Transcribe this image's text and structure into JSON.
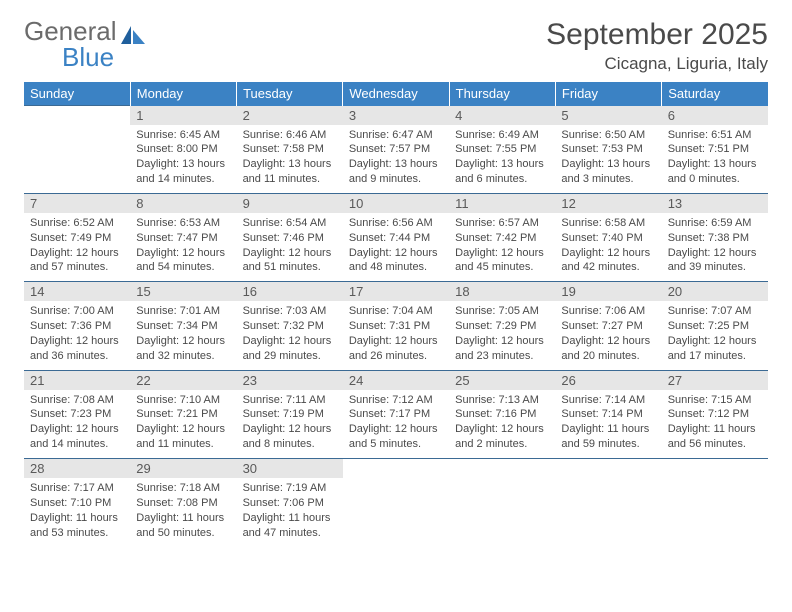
{
  "brand": {
    "part1": "General",
    "part2": "Blue"
  },
  "title": "September 2025",
  "location": "Cicagna, Liguria, Italy",
  "colors": {
    "header_bg": "#3b82c4",
    "header_fg": "#ffffff",
    "daynum_bg": "#e6e6e6",
    "rule": "#3b6a94",
    "text": "#4a4a4a",
    "brand_gray": "#6b6b6b",
    "brand_blue": "#3b82c4"
  },
  "weekdays": [
    "Sunday",
    "Monday",
    "Tuesday",
    "Wednesday",
    "Thursday",
    "Friday",
    "Saturday"
  ],
  "weeks": [
    [
      null,
      {
        "n": "1",
        "sunrise": "6:45 AM",
        "sunset": "8:00 PM",
        "dl": "13 hours and 14 minutes."
      },
      {
        "n": "2",
        "sunrise": "6:46 AM",
        "sunset": "7:58 PM",
        "dl": "13 hours and 11 minutes."
      },
      {
        "n": "3",
        "sunrise": "6:47 AM",
        "sunset": "7:57 PM",
        "dl": "13 hours and 9 minutes."
      },
      {
        "n": "4",
        "sunrise": "6:49 AM",
        "sunset": "7:55 PM",
        "dl": "13 hours and 6 minutes."
      },
      {
        "n": "5",
        "sunrise": "6:50 AM",
        "sunset": "7:53 PM",
        "dl": "13 hours and 3 minutes."
      },
      {
        "n": "6",
        "sunrise": "6:51 AM",
        "sunset": "7:51 PM",
        "dl": "13 hours and 0 minutes."
      }
    ],
    [
      {
        "n": "7",
        "sunrise": "6:52 AM",
        "sunset": "7:49 PM",
        "dl": "12 hours and 57 minutes."
      },
      {
        "n": "8",
        "sunrise": "6:53 AM",
        "sunset": "7:47 PM",
        "dl": "12 hours and 54 minutes."
      },
      {
        "n": "9",
        "sunrise": "6:54 AM",
        "sunset": "7:46 PM",
        "dl": "12 hours and 51 minutes."
      },
      {
        "n": "10",
        "sunrise": "6:56 AM",
        "sunset": "7:44 PM",
        "dl": "12 hours and 48 minutes."
      },
      {
        "n": "11",
        "sunrise": "6:57 AM",
        "sunset": "7:42 PM",
        "dl": "12 hours and 45 minutes."
      },
      {
        "n": "12",
        "sunrise": "6:58 AM",
        "sunset": "7:40 PM",
        "dl": "12 hours and 42 minutes."
      },
      {
        "n": "13",
        "sunrise": "6:59 AM",
        "sunset": "7:38 PM",
        "dl": "12 hours and 39 minutes."
      }
    ],
    [
      {
        "n": "14",
        "sunrise": "7:00 AM",
        "sunset": "7:36 PM",
        "dl": "12 hours and 36 minutes."
      },
      {
        "n": "15",
        "sunrise": "7:01 AM",
        "sunset": "7:34 PM",
        "dl": "12 hours and 32 minutes."
      },
      {
        "n": "16",
        "sunrise": "7:03 AM",
        "sunset": "7:32 PM",
        "dl": "12 hours and 29 minutes."
      },
      {
        "n": "17",
        "sunrise": "7:04 AM",
        "sunset": "7:31 PM",
        "dl": "12 hours and 26 minutes."
      },
      {
        "n": "18",
        "sunrise": "7:05 AM",
        "sunset": "7:29 PM",
        "dl": "12 hours and 23 minutes."
      },
      {
        "n": "19",
        "sunrise": "7:06 AM",
        "sunset": "7:27 PM",
        "dl": "12 hours and 20 minutes."
      },
      {
        "n": "20",
        "sunrise": "7:07 AM",
        "sunset": "7:25 PM",
        "dl": "12 hours and 17 minutes."
      }
    ],
    [
      {
        "n": "21",
        "sunrise": "7:08 AM",
        "sunset": "7:23 PM",
        "dl": "12 hours and 14 minutes."
      },
      {
        "n": "22",
        "sunrise": "7:10 AM",
        "sunset": "7:21 PM",
        "dl": "12 hours and 11 minutes."
      },
      {
        "n": "23",
        "sunrise": "7:11 AM",
        "sunset": "7:19 PM",
        "dl": "12 hours and 8 minutes."
      },
      {
        "n": "24",
        "sunrise": "7:12 AM",
        "sunset": "7:17 PM",
        "dl": "12 hours and 5 minutes."
      },
      {
        "n": "25",
        "sunrise": "7:13 AM",
        "sunset": "7:16 PM",
        "dl": "12 hours and 2 minutes."
      },
      {
        "n": "26",
        "sunrise": "7:14 AM",
        "sunset": "7:14 PM",
        "dl": "11 hours and 59 minutes."
      },
      {
        "n": "27",
        "sunrise": "7:15 AM",
        "sunset": "7:12 PM",
        "dl": "11 hours and 56 minutes."
      }
    ],
    [
      {
        "n": "28",
        "sunrise": "7:17 AM",
        "sunset": "7:10 PM",
        "dl": "11 hours and 53 minutes."
      },
      {
        "n": "29",
        "sunrise": "7:18 AM",
        "sunset": "7:08 PM",
        "dl": "11 hours and 50 minutes."
      },
      {
        "n": "30",
        "sunrise": "7:19 AM",
        "sunset": "7:06 PM",
        "dl": "11 hours and 47 minutes."
      },
      null,
      null,
      null,
      null
    ]
  ],
  "labels": {
    "sunrise": "Sunrise:",
    "sunset": "Sunset:",
    "daylight": "Daylight:"
  }
}
